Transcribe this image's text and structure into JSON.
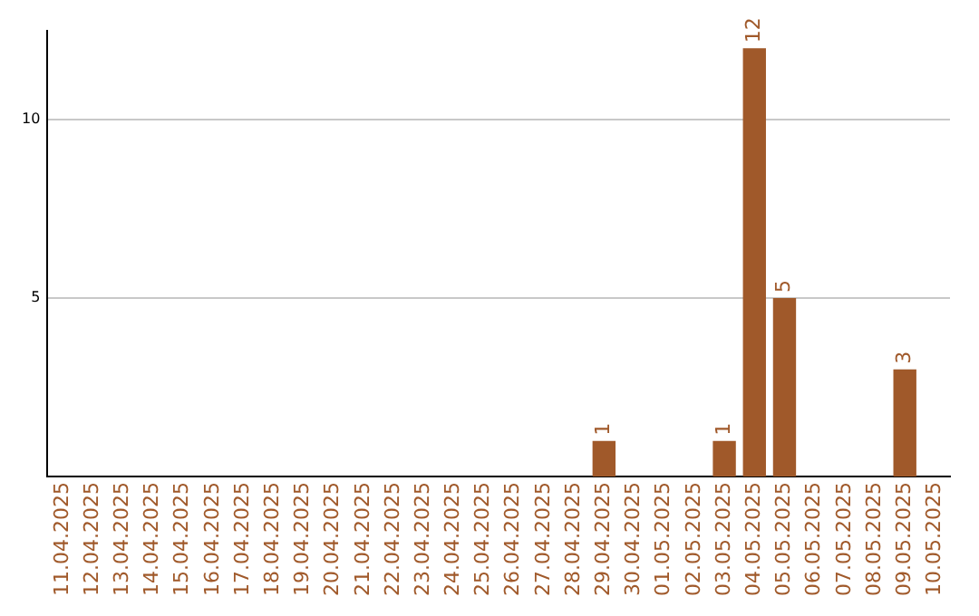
{
  "chart_data": {
    "type": "bar",
    "categories": [
      "11.04.2025",
      "12.04.2025",
      "13.04.2025",
      "14.04.2025",
      "15.04.2025",
      "16.04.2025",
      "17.04.2025",
      "18.04.2025",
      "19.04.2025",
      "20.04.2025",
      "21.04.2025",
      "22.04.2025",
      "23.04.2025",
      "24.04.2025",
      "25.04.2025",
      "26.04.2025",
      "27.04.2025",
      "28.04.2025",
      "29.04.2025",
      "30.04.2025",
      "01.05.2025",
      "02.05.2025",
      "03.05.2025",
      "04.05.2025",
      "05.05.2025",
      "06.05.2025",
      "07.05.2025",
      "08.05.2025",
      "09.05.2025",
      "10.05.2025"
    ],
    "values": [
      null,
      null,
      null,
      null,
      null,
      null,
      null,
      null,
      null,
      null,
      null,
      null,
      null,
      null,
      null,
      null,
      null,
      null,
      1,
      null,
      null,
      null,
      1,
      12,
      5,
      null,
      null,
      null,
      3,
      null
    ],
    "color": "#a0592a",
    "ylim": [
      0,
      12.5
    ],
    "yticks": [
      5,
      10
    ],
    "grid": "y",
    "data_labels": true
  }
}
